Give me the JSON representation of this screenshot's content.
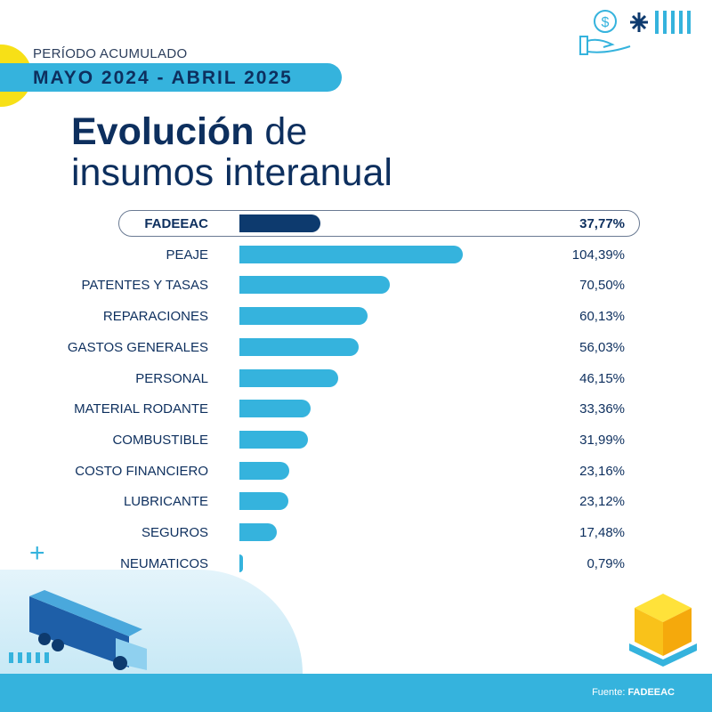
{
  "header": {
    "period_label": "PERÍODO ACUMULADO",
    "period_range": "MAYO 2024 - ABRIL 2025",
    "title_bold": "Evolución",
    "title_rest1": " de",
    "title_line2": "insumos interanual"
  },
  "footer": {
    "source_prefix": "Fuente: ",
    "source_name": "FADEEAC"
  },
  "colors": {
    "bar": "#35b3dd",
    "highlight_bar": "#0d3a6e",
    "text": "#0d2f5e",
    "accent_yellow": "#f7e017"
  },
  "chart_data": {
    "type": "bar",
    "orientation": "horizontal",
    "title": "Evolución de insumos interanual",
    "unit": "%",
    "categories": [
      "FADEEAC",
      "PEAJE",
      "PATENTES Y TASAS",
      "REPARACIONES",
      "GASTOS GENERALES",
      "PERSONAL",
      "MATERIAL RODANTE",
      "COMBUSTIBLE",
      "COSTO FINANCIERO",
      "LUBRICANTE",
      "SEGUROS",
      "NEUMATICOS"
    ],
    "values": [
      37.77,
      104.39,
      70.5,
      60.13,
      56.03,
      46.15,
      33.36,
      31.99,
      23.16,
      23.12,
      17.48,
      0.79
    ],
    "labels": [
      "37,77%",
      "104,39%",
      "70,50%",
      "60,13%",
      "56,03%",
      "46,15%",
      "33,36%",
      "31,99%",
      "23,16%",
      "23,12%",
      "17,48%",
      "0,79%"
    ],
    "highlight": "FADEEAC"
  }
}
